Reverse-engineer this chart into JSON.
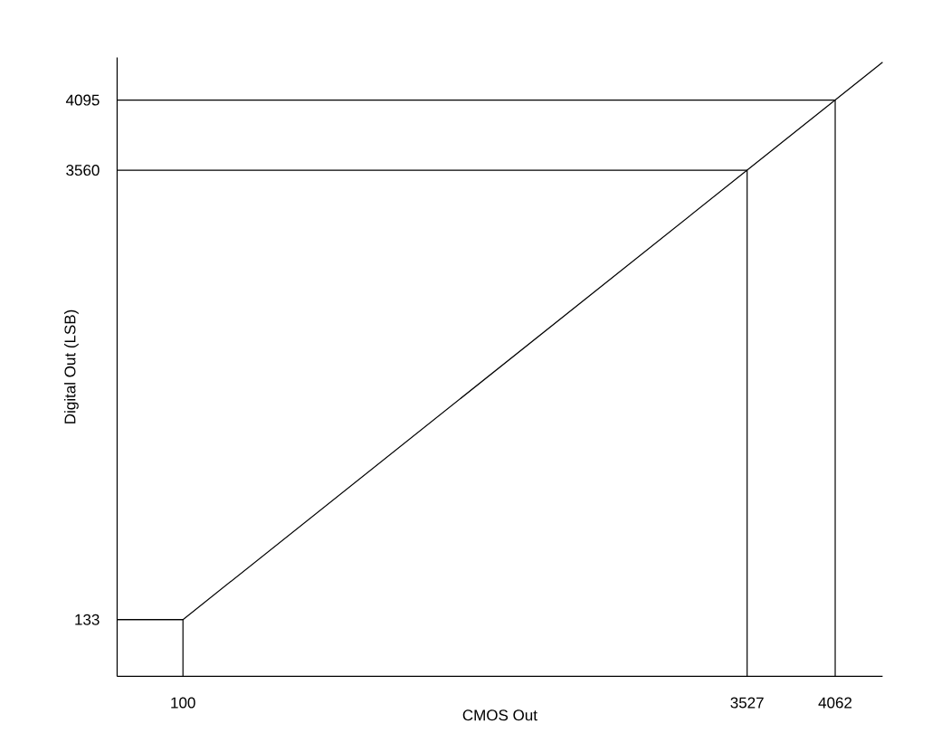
{
  "chart_data": {
    "type": "line",
    "xlabel": "CMOS Out",
    "ylabel": "Digital Out (LSB)",
    "xlim": [
      -300,
      4350
    ],
    "ylim": [
      -300,
      4420
    ],
    "xticks": [
      100,
      3527,
      4062
    ],
    "yticks": [
      133,
      3560,
      4095
    ],
    "series": [
      {
        "color": "#000000",
        "x": [
          -300,
          100,
          3527,
          4062,
          4350
        ],
        "values": [
          133,
          133,
          3560,
          4095,
          4383
        ]
      }
    ],
    "ref_lines": [
      {
        "axis": "x",
        "value": 100,
        "color": "#000000"
      },
      {
        "axis": "x",
        "value": 3527,
        "color": "#000000"
      },
      {
        "axis": "x",
        "value": 4062,
        "color": "#000000"
      },
      {
        "axis": "y",
        "value": 133,
        "color": "#000000"
      },
      {
        "axis": "y",
        "value": 3560,
        "color": "#000000"
      },
      {
        "axis": "y",
        "value": 4095,
        "color": "#000000"
      }
    ],
    "grid": false,
    "marker": "none",
    "line_style": "solid"
  }
}
